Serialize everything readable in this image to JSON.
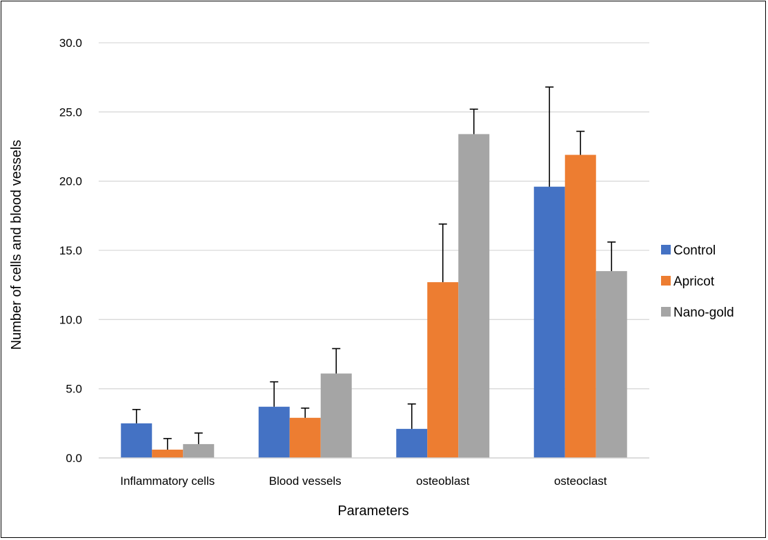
{
  "chart_data": {
    "type": "bar",
    "title": "",
    "xlabel": "Parameters",
    "ylabel": "Number of cells and blood vessels",
    "ylim": [
      0,
      30
    ],
    "yticks": [
      "0.0",
      "5.0",
      "10.0",
      "15.0",
      "20.0",
      "25.0",
      "30.0"
    ],
    "grid": true,
    "legend_position": "right",
    "categories": [
      "Inflammatory cells",
      "Blood vessels",
      "osteoblast",
      "osteoclast"
    ],
    "series": [
      {
        "name": "Control",
        "color": "#4472C4",
        "values": [
          2.5,
          3.7,
          2.1,
          19.6
        ],
        "errors": [
          1.0,
          1.8,
          1.8,
          7.2
        ]
      },
      {
        "name": "Apricot",
        "color": "#ED7D31",
        "values": [
          0.6,
          2.9,
          12.7,
          21.9
        ],
        "errors": [
          0.8,
          0.7,
          4.2,
          1.7
        ]
      },
      {
        "name": "Nano-gold",
        "color": "#A5A5A5",
        "values": [
          1.0,
          6.1,
          23.4,
          13.5
        ],
        "errors": [
          0.8,
          1.8,
          1.8,
          2.1
        ]
      }
    ]
  }
}
